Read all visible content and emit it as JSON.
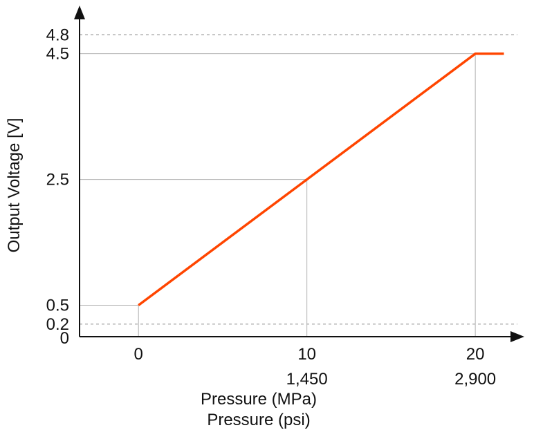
{
  "chart_data": {
    "type": "line",
    "xlabel": "Pressure (MPa)",
    "xlabel_secondary": "Pressure (psi)",
    "ylabel": "Output Voltage [V]",
    "x_ticks": [
      "0",
      "10",
      "20"
    ],
    "x_ticks_secondary": [
      "1,450",
      "2,900"
    ],
    "y_ticks": [
      "0",
      "0.2",
      "0.5",
      "2.5",
      "4.5",
      "4.8"
    ],
    "xlim": [
      -3.5,
      22.5
    ],
    "ylim": [
      0,
      5.2
    ],
    "series": [
      {
        "values": [
          [
            0,
            0.5
          ],
          [
            10,
            2.5
          ],
          [
            20,
            4.5
          ],
          [
            21.7,
            4.5
          ]
        ]
      }
    ],
    "dashed_reference_lines": [
      0.2,
      4.8
    ],
    "guide_lines": [
      [
        0,
        0.5
      ],
      [
        10,
        2.5
      ],
      [
        20,
        4.5
      ]
    ],
    "line_color": "#ff4500",
    "grid": false
  }
}
